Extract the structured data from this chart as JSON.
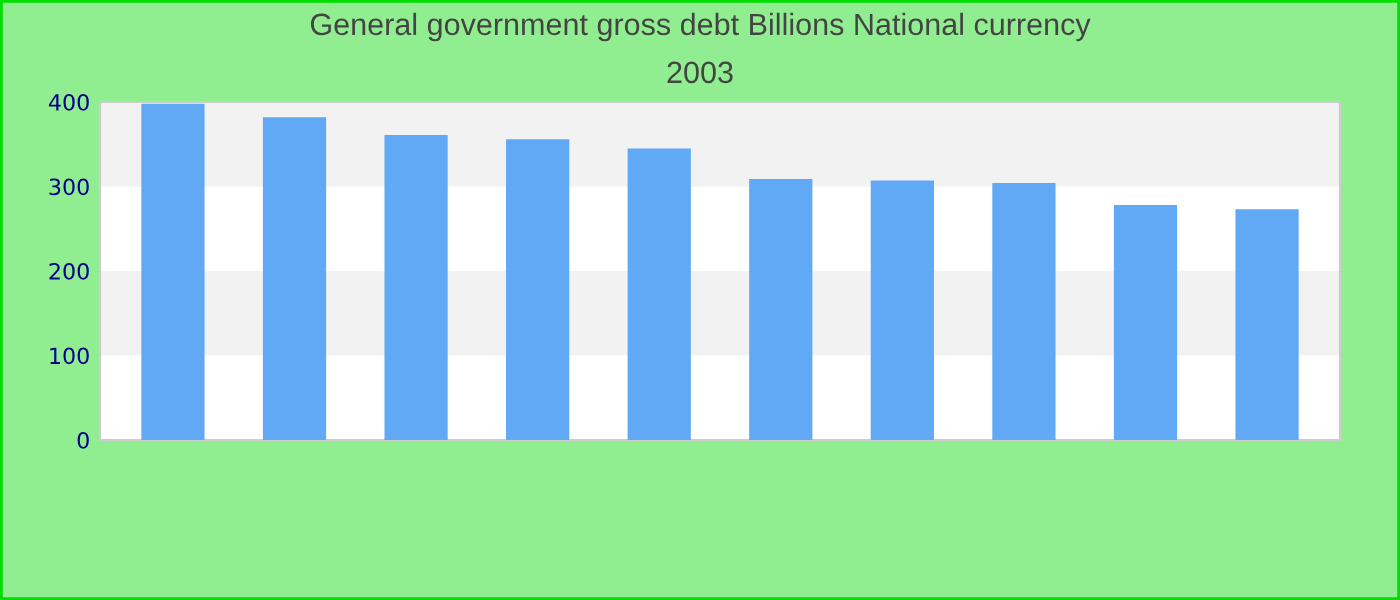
{
  "chart_data": {
    "type": "bar",
    "title": "General government gross debt Billions National currency",
    "subtitle": "2003",
    "categories": [
      null,
      null,
      null,
      null,
      null,
      null,
      null,
      null,
      null,
      null
    ],
    "values": [
      398,
      382,
      361,
      356,
      345,
      309,
      307,
      304,
      278,
      273
    ],
    "color": "#61a8f5",
    "ylim": [
      0,
      400
    ],
    "yticks": [
      0,
      100,
      200,
      300,
      400
    ],
    "grid": false,
    "bands": [
      {
        "axis": "y",
        "from": 100,
        "to": 200,
        "color": "#f2f2f2"
      },
      {
        "axis": "y",
        "from": 300,
        "to": 400,
        "color": "#f2f2f2"
      }
    ]
  }
}
